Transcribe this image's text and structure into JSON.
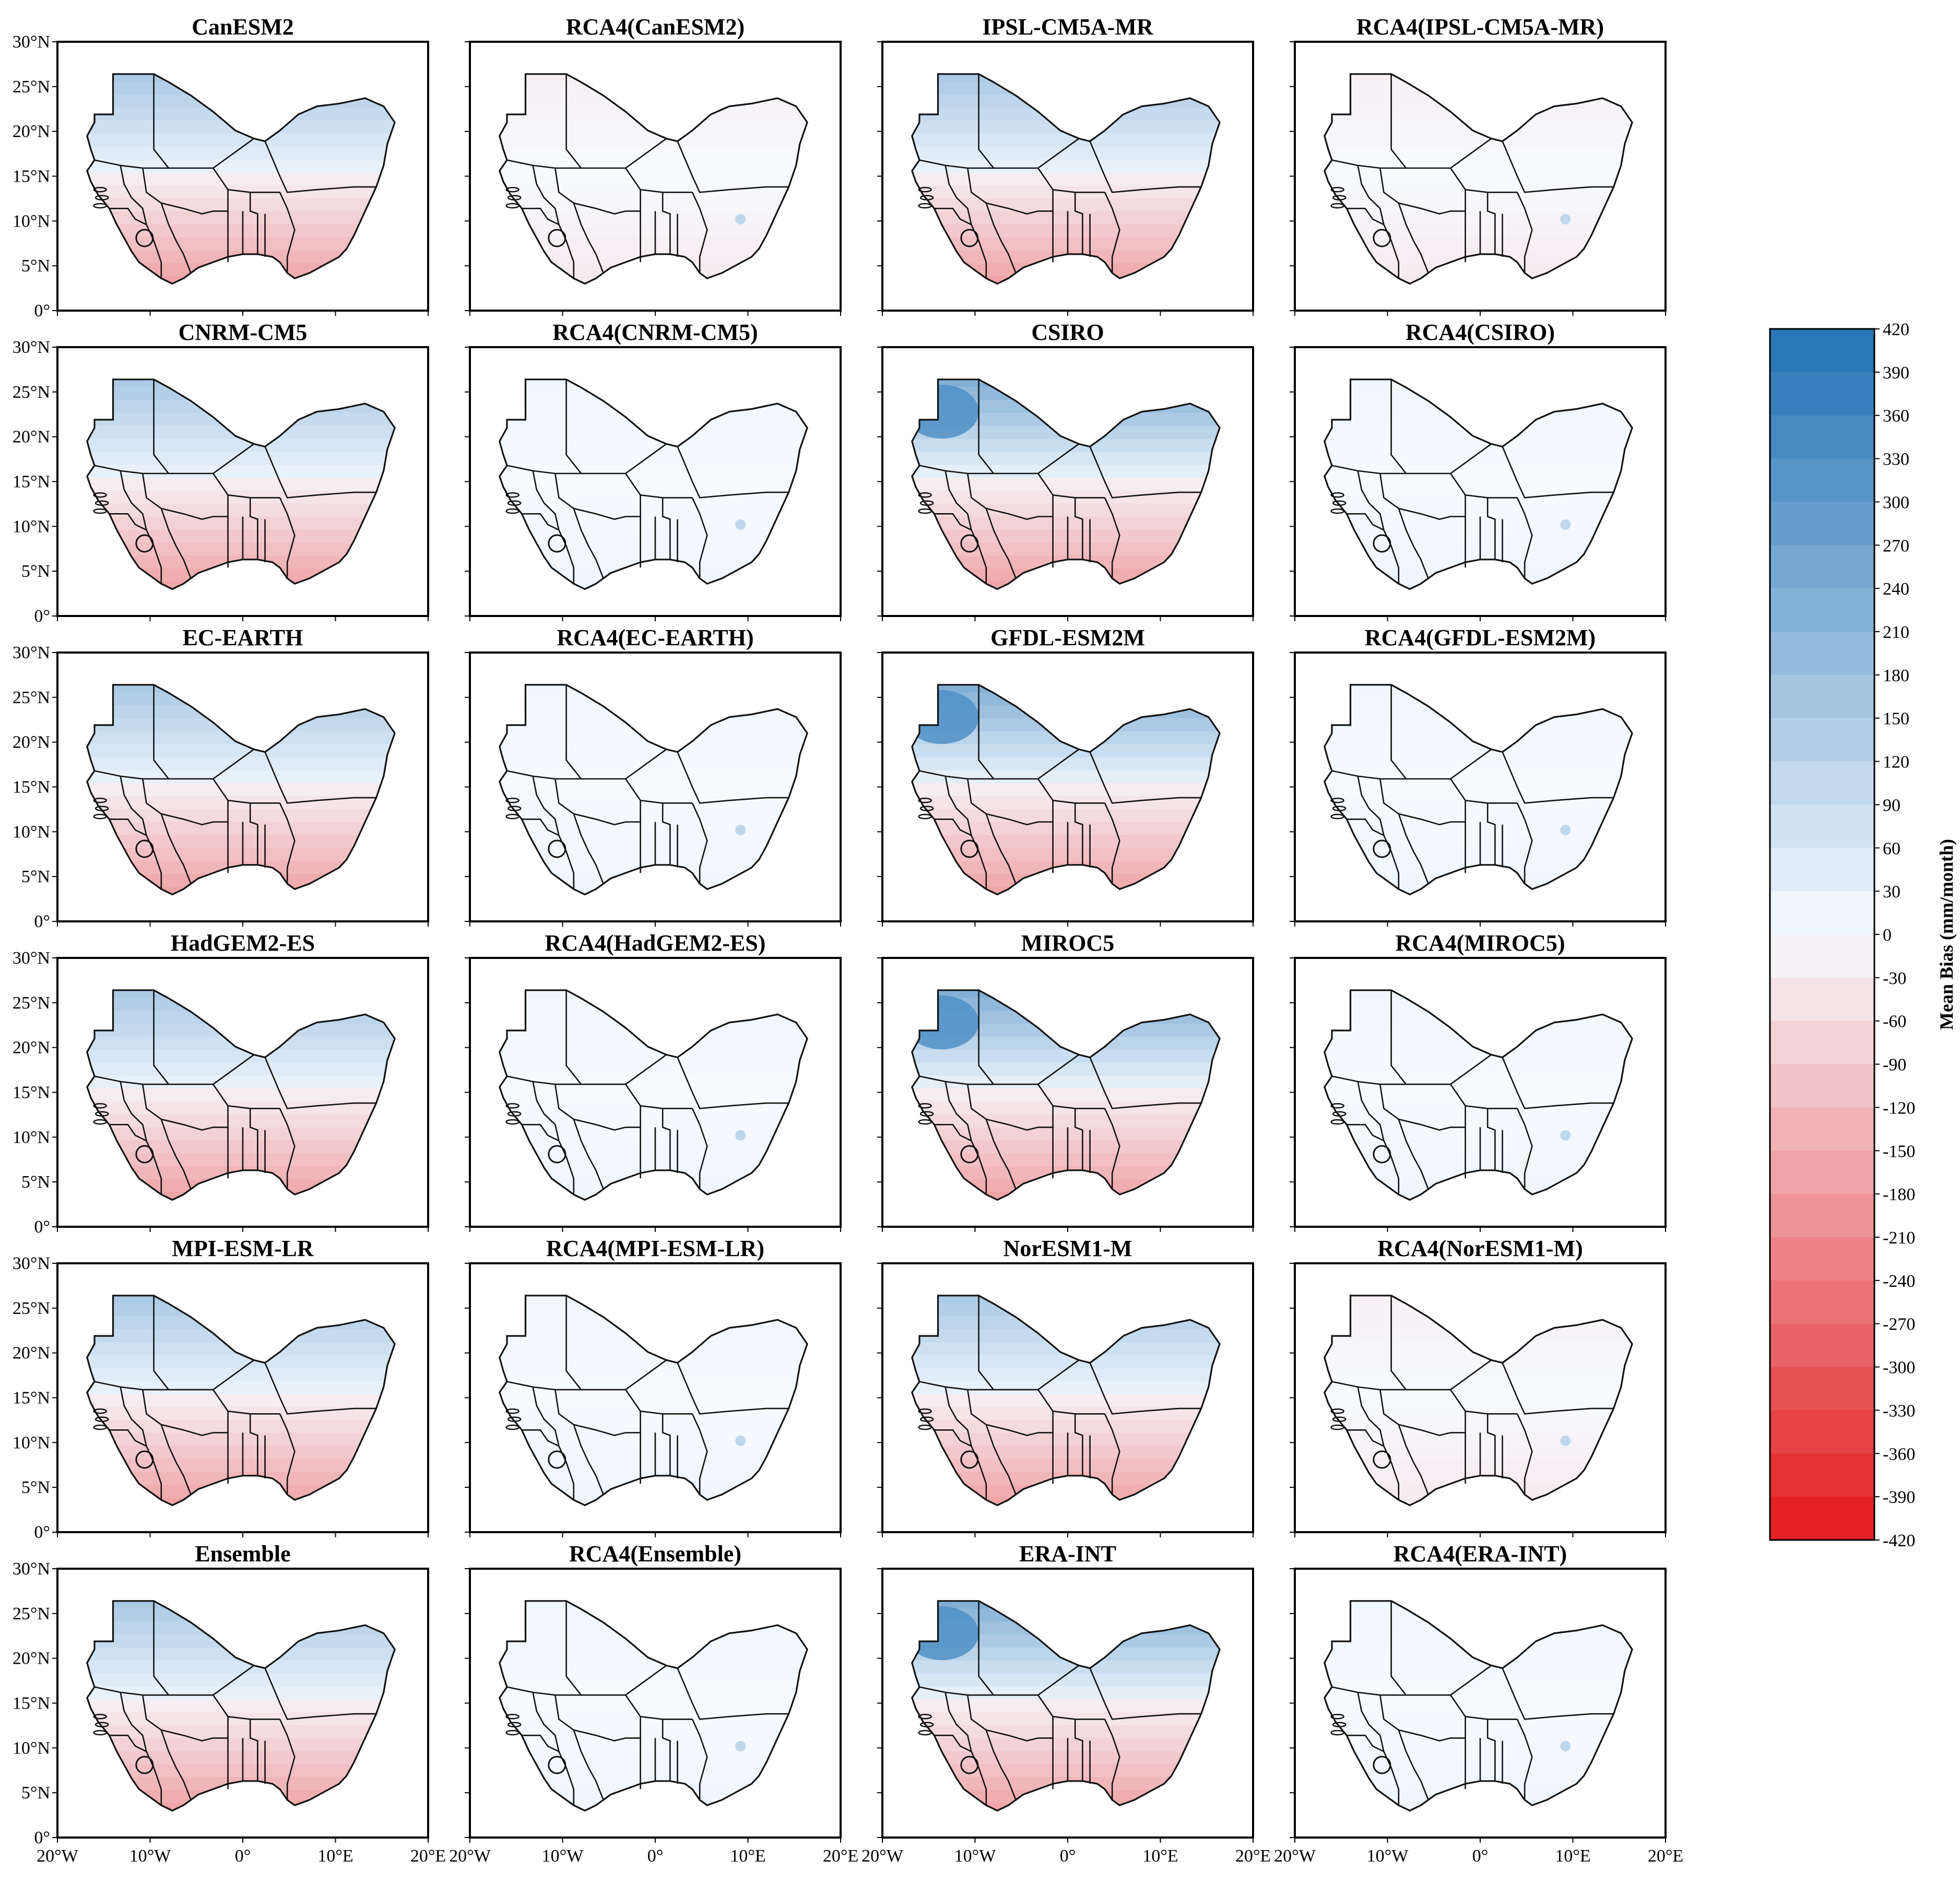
{
  "figure": {
    "rows": 6,
    "cols": 4,
    "panels": [
      {
        "title": "CanESM2",
        "kind": "gcm",
        "north_bias": "med",
        "south_bias": "strong"
      },
      {
        "title": "RCA4(CanESM2)",
        "kind": "rcm",
        "north_bias": "dry",
        "south_bias": "light"
      },
      {
        "title": "IPSL-CM5A-MR",
        "kind": "gcm",
        "north_bias": "med",
        "south_bias": "strong"
      },
      {
        "title": "RCA4(IPSL-CM5A-MR)",
        "kind": "rcm",
        "north_bias": "dry",
        "south_bias": "light"
      },
      {
        "title": "CNRM-CM5",
        "kind": "gcm",
        "north_bias": "med",
        "south_bias": "strong"
      },
      {
        "title": "RCA4(CNRM-CM5)",
        "kind": "rcm",
        "north_bias": "neutral",
        "south_bias": "wet"
      },
      {
        "title": "CSIRO",
        "kind": "gcm",
        "north_bias": "high",
        "south_bias": "strong"
      },
      {
        "title": "RCA4(CSIRO)",
        "kind": "rcm",
        "north_bias": "neutral",
        "south_bias": "wet"
      },
      {
        "title": "EC-EARTH",
        "kind": "gcm",
        "north_bias": "med",
        "south_bias": "strong"
      },
      {
        "title": "RCA4(EC-EARTH)",
        "kind": "rcm",
        "north_bias": "neutral",
        "south_bias": "wet"
      },
      {
        "title": "GFDL-ESM2M",
        "kind": "gcm",
        "north_bias": "high",
        "south_bias": "strong"
      },
      {
        "title": "RCA4(GFDL-ESM2M)",
        "kind": "rcm",
        "north_bias": "neutral",
        "south_bias": "wet"
      },
      {
        "title": "HadGEM2-ES",
        "kind": "gcm",
        "north_bias": "med",
        "south_bias": "strong"
      },
      {
        "title": "RCA4(HadGEM2-ES)",
        "kind": "rcm",
        "north_bias": "neutral",
        "south_bias": "wet"
      },
      {
        "title": "MIROC5",
        "kind": "gcm",
        "north_bias": "high",
        "south_bias": "strong"
      },
      {
        "title": "RCA4(MIROC5)",
        "kind": "rcm",
        "north_bias": "neutral",
        "south_bias": "wet"
      },
      {
        "title": "MPI-ESM-LR",
        "kind": "gcm",
        "north_bias": "med",
        "south_bias": "strong"
      },
      {
        "title": "RCA4(MPI-ESM-LR)",
        "kind": "rcm",
        "north_bias": "neutral",
        "south_bias": "wet"
      },
      {
        "title": "NorESM1-M",
        "kind": "gcm",
        "north_bias": "med",
        "south_bias": "strong"
      },
      {
        "title": "RCA4(NorESM1-M)",
        "kind": "rcm",
        "north_bias": "dry",
        "south_bias": "light"
      },
      {
        "title": "Ensemble",
        "kind": "gcm",
        "north_bias": "med",
        "south_bias": "strong"
      },
      {
        "title": "RCA4(Ensemble)",
        "kind": "rcm",
        "north_bias": "neutral",
        "south_bias": "wet"
      },
      {
        "title": "ERA-INT",
        "kind": "gcm",
        "north_bias": "high",
        "south_bias": "strong"
      },
      {
        "title": "RCA4(ERA-INT)",
        "kind": "rcm",
        "north_bias": "neutral",
        "south_bias": "wet"
      }
    ],
    "lat_ticks": [
      "0°",
      "5°N",
      "10°N",
      "15°N",
      "20°N",
      "25°N",
      "30°N"
    ],
    "lon_ticks": [
      "20°W",
      "10°W",
      "0°",
      "10°E",
      "20°E"
    ],
    "lon_range": [
      -20,
      20
    ],
    "lat_range": [
      0,
      30
    ],
    "colorbar": {
      "label": "Mean Bias (mm/month)",
      "min": -420,
      "max": 420,
      "step": 30,
      "tick_labels": [
        "420",
        "390",
        "360",
        "330",
        "300",
        "270",
        "240",
        "210",
        "180",
        "150",
        "120",
        "90",
        "60",
        "30",
        "0",
        "-30",
        "-60",
        "-90",
        "-120",
        "-150",
        "-180",
        "-210",
        "-240",
        "-270",
        "-300",
        "-330",
        "-360",
        "-390",
        "-420"
      ],
      "positive_color": "#2171b5",
      "negative_color": "#e31a1c",
      "zero_color": "#f7fbff"
    }
  }
}
